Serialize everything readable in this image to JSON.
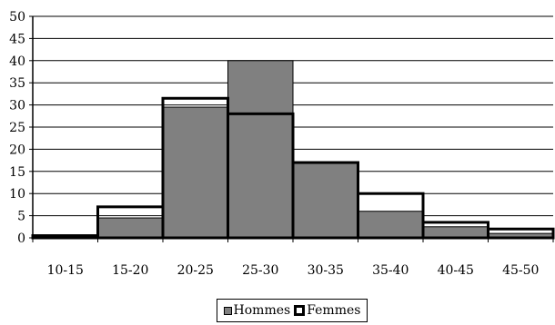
{
  "chart_data": {
    "type": "bar",
    "categories": [
      "10-15",
      "15-20",
      "20-25",
      "25-30",
      "30-35",
      "35-40",
      "40-45",
      "45-50"
    ],
    "series": [
      {
        "name": "Hommes",
        "values": [
          0,
          4.5,
          29.5,
          40,
          17,
          6,
          2.5,
          1
        ],
        "style": "filled",
        "color": "#808080"
      },
      {
        "name": "Femmes",
        "values": [
          0.5,
          7,
          31.5,
          28,
          17,
          10,
          3.5,
          2
        ],
        "style": "outline",
        "color": "#000000"
      }
    ],
    "ylim": [
      0,
      50
    ],
    "yticks": [
      0,
      5,
      10,
      15,
      20,
      25,
      30,
      35,
      40,
      45,
      50
    ],
    "grid": true,
    "legend_position": "bottom-center",
    "title": "",
    "xlabel": "",
    "ylabel": ""
  }
}
